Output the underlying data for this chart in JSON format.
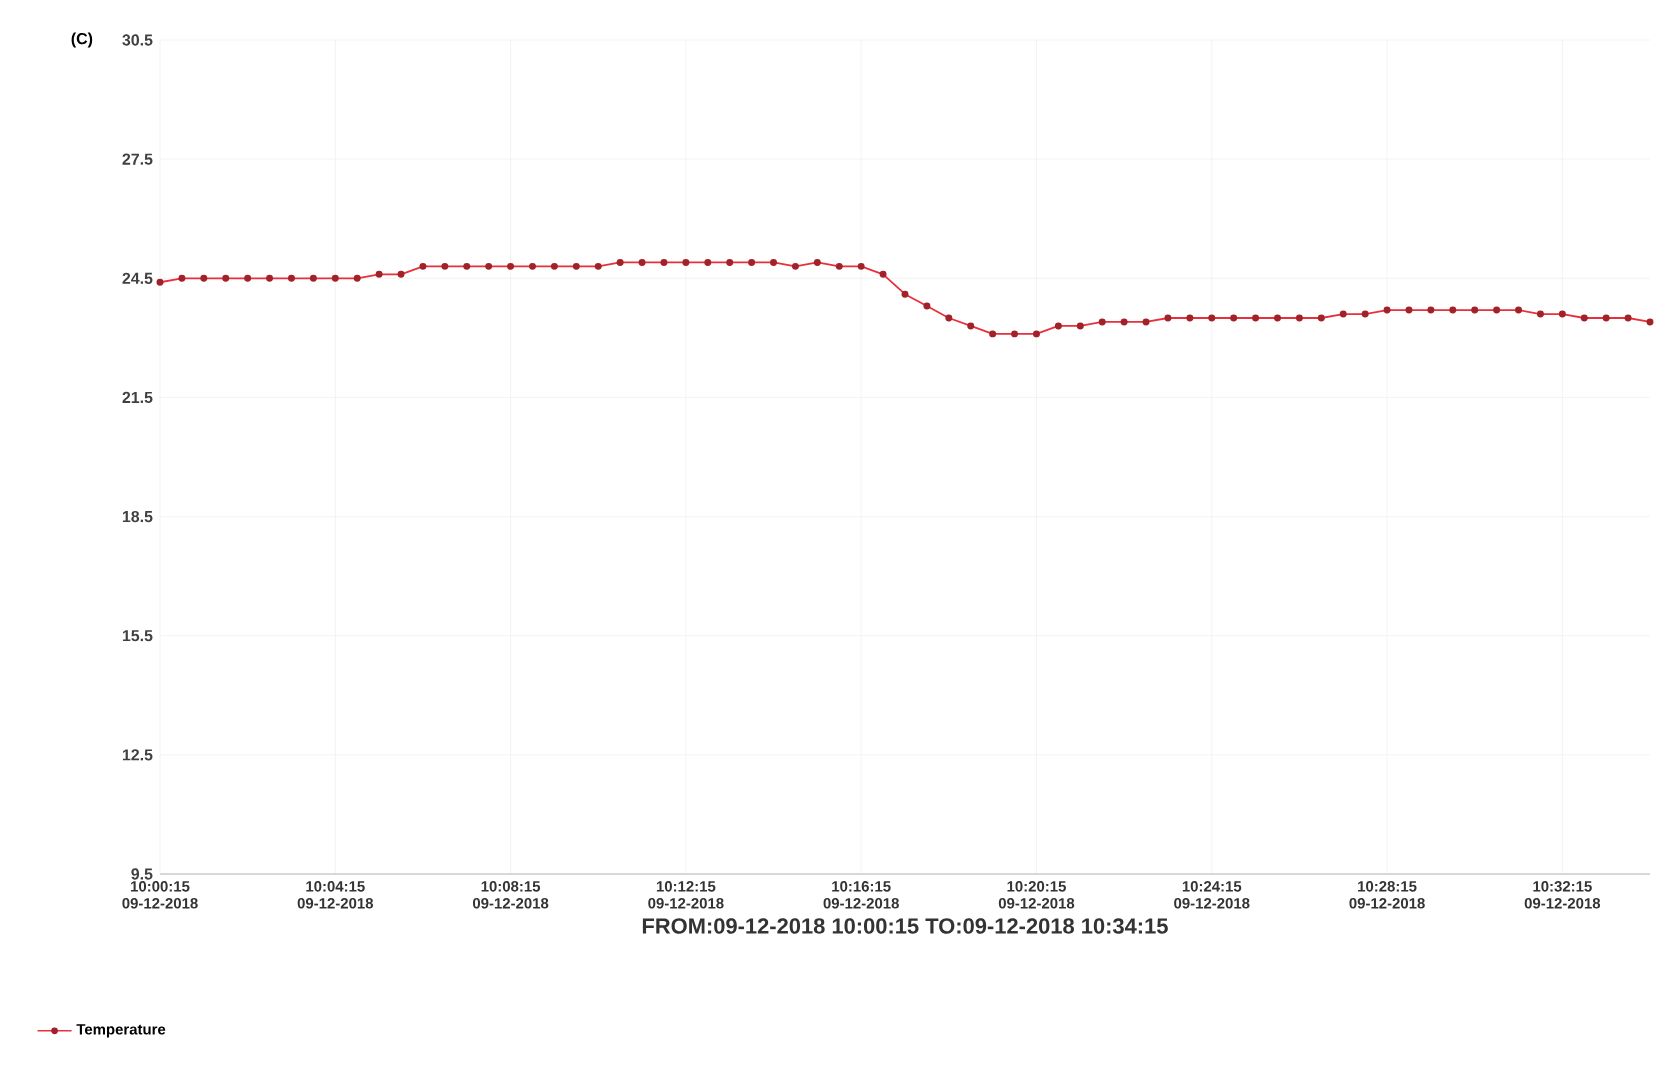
{
  "chart_data": {
    "type": "line",
    "ylabel": "(C)",
    "xlabel": "FROM:09-12-2018 10:00:15    TO:09-12-2018 10:34:15",
    "categories": [
      "10:00:15 09-12-2018",
      null,
      null,
      null,
      null,
      null,
      null,
      null,
      "10:04:15 09-12-2018",
      null,
      null,
      null,
      null,
      null,
      null,
      null,
      "10:08:15 09-12-2018",
      null,
      null,
      null,
      null,
      null,
      null,
      null,
      "10:12:15 09-12-2018",
      null,
      null,
      null,
      null,
      null,
      null,
      null,
      "10:16:15 09-12-2018",
      null,
      null,
      null,
      null,
      null,
      null,
      null,
      "10:20:15 09-12-2018",
      null,
      null,
      null,
      null,
      null,
      null,
      null,
      "10:24:15 09-12-2018",
      null,
      null,
      null,
      null,
      null,
      null,
      null,
      "10:28:15 09-12-2018",
      null,
      null,
      null,
      null,
      null,
      null,
      null,
      "10:32:15 09-12-2018",
      null,
      null,
      null,
      null
    ],
    "series": [
      {
        "name": "Temperature",
        "color": "#e8303c",
        "values": [
          24.4,
          24.5,
          24.5,
          24.5,
          24.5,
          24.5,
          24.5,
          24.5,
          24.5,
          24.5,
          24.6,
          24.6,
          24.8,
          24.8,
          24.8,
          24.8,
          24.8,
          24.8,
          24.8,
          24.8,
          24.8,
          24.9,
          24.9,
          24.9,
          24.9,
          24.9,
          24.9,
          24.9,
          24.9,
          24.8,
          24.9,
          24.8,
          24.8,
          24.6,
          24.1,
          23.8,
          23.5,
          23.3,
          23.1,
          23.1,
          23.1,
          23.3,
          23.3,
          23.4,
          23.4,
          23.4,
          23.5,
          23.5,
          23.5,
          23.5,
          23.5,
          23.5,
          23.5,
          23.5,
          23.6,
          23.6,
          23.7,
          23.7,
          23.7,
          23.7,
          23.7,
          23.7,
          23.7,
          23.6,
          23.6,
          23.5,
          23.5,
          23.5,
          23.4
        ]
      }
    ],
    "ylim": [
      9.5,
      30.5
    ],
    "yticks": [
      9.5,
      12.5,
      15.5,
      18.5,
      21.5,
      24.5,
      27.5,
      30.5
    ],
    "grid": true,
    "legend": "bottom left",
    "marker": "circle",
    "line_style": "solid"
  }
}
